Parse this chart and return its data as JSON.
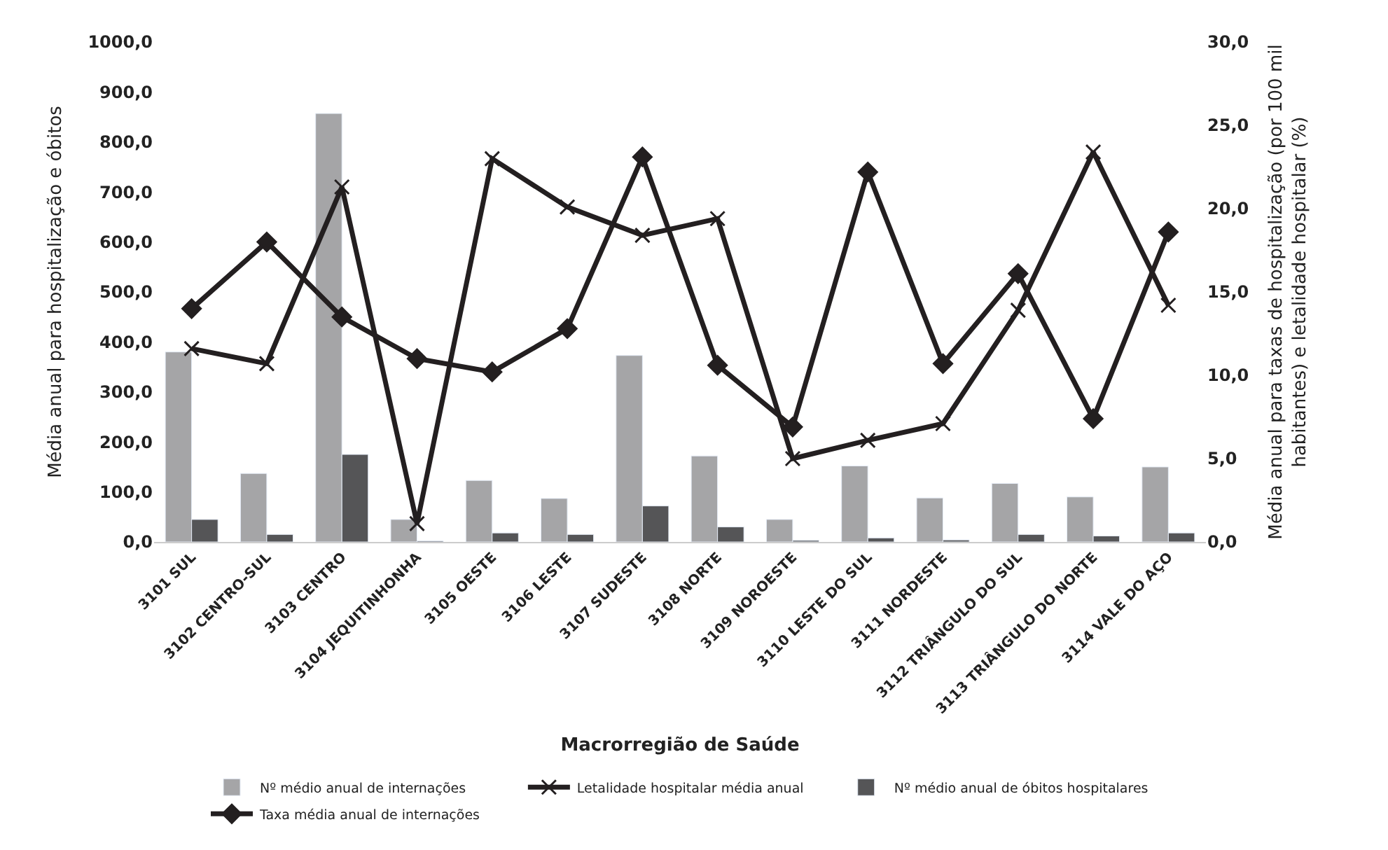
{
  "chart_data": {
    "type": "bar",
    "xlabel": "Macrorregião de Saúde",
    "ylabel": "Média anual para hospitalização e óbitos",
    "y2label": "Média anual para taxas de hospitalização (por 100 mil habitantes) e letalidade hospitalar (%)",
    "categories": [
      "3101 SUL",
      "3102 CENTRO-SUL",
      "3103 CENTRO",
      "3104 JEQUITINHONHA",
      "3105 OESTE",
      "3106 LESTE",
      "3107 SUDESTE",
      "3108 NORTE",
      "3109 NOROESTE",
      "3110 LESTE DO SUL",
      "3111 NORDESTE",
      "3112 TRIÂNGULO DO SUL",
      "3113 TRIÂNGULO DO NORTE",
      "3114 VALE DO AÇO"
    ],
    "series": [
      {
        "name": "Nº médio anual de internações",
        "color": "#a5a5a7",
        "values": [
          380,
          137,
          857,
          45,
          123,
          87,
          373,
          172,
          45,
          152,
          88,
          117,
          90,
          150
        ]
      },
      {
        "name": "Letalidade hospitalar média anual",
        "type": "line",
        "axis": "y2",
        "marker": "cross",
        "color": "#231f20",
        "values": [
          11.6,
          10.7,
          21.3,
          1.1,
          23.0,
          20.1,
          18.4,
          19.4,
          5.0,
          6.1,
          7.1,
          13.9,
          23.4,
          14.2
        ]
      },
      {
        "name": "Nº médio anual de óbitos hospitalares",
        "color": "#555557",
        "values": [
          45,
          15,
          175,
          2,
          18,
          15,
          72,
          30,
          3,
          8,
          4,
          15,
          12,
          18
        ]
      },
      {
        "name": "Taxa média anual de internações",
        "type": "line",
        "axis": "y2",
        "marker": "diamond",
        "color": "#231f20",
        "values": [
          14.0,
          18.0,
          13.5,
          11.0,
          10.2,
          12.8,
          23.1,
          10.6,
          6.9,
          22.2,
          10.7,
          16.1,
          7.4,
          18.6
        ]
      }
    ],
    "ylim": [
      0,
      1000
    ],
    "yticks": [
      {
        "value": 0,
        "label": "0,0"
      },
      {
        "value": 100,
        "label": "100,0"
      },
      {
        "value": 200,
        "label": "200,0"
      },
      {
        "value": 300,
        "label": "300,0"
      },
      {
        "value": 400,
        "label": "400,0"
      },
      {
        "value": 500,
        "label": "500,0"
      },
      {
        "value": 600,
        "label": "600,0"
      },
      {
        "value": 700,
        "label": "700,0"
      },
      {
        "value": 800,
        "label": "800,0"
      },
      {
        "value": 900,
        "label": "900,0"
      },
      {
        "value": 1000,
        "label": "1000,0"
      }
    ],
    "y2lim": [
      0,
      30
    ],
    "y2ticks": [
      {
        "value": 0,
        "label": "0,0"
      },
      {
        "value": 5,
        "label": "5,0"
      },
      {
        "value": 10,
        "label": "10,0"
      },
      {
        "value": 15,
        "label": "15,0"
      },
      {
        "value": 20,
        "label": "20,0"
      },
      {
        "value": 25,
        "label": "25,0"
      },
      {
        "value": 30,
        "label": "30,0"
      }
    ],
    "legend": "bottom"
  }
}
